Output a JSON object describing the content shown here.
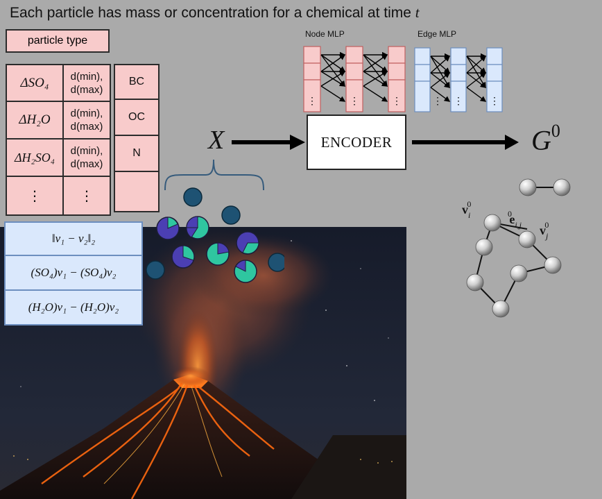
{
  "title": {
    "text": "Each particle has mass or concentration for a chemical at time ",
    "var": "t"
  },
  "particle_type": "particle type",
  "table": {
    "rows": [
      {
        "chem": "ΔSO₄",
        "range": [
          "d(min),",
          "d(max)"
        ]
      },
      {
        "chem": "ΔH₂O",
        "range": [
          "d(min),",
          "d(max)"
        ]
      },
      {
        "chem": "ΔH₂SO₄",
        "range": [
          "d(min),",
          "d(max)"
        ]
      },
      {
        "chem": "⋮",
        "range": [
          "⋮",
          ""
        ]
      }
    ],
    "types": [
      "BC",
      "OC",
      "N",
      ""
    ]
  },
  "edge_features": [
    "‖v₁ − v₂‖₂",
    "(SO₄)v₁ − (SO₄)v₂",
    "(H₂O)v₁ − (H₂O)v₂"
  ],
  "x_label": "X",
  "encoder": "ENCODER",
  "g_label": {
    "base": "G",
    "sup": "0"
  },
  "node_mlp": "Node MLP",
  "edge_mlp": "Edge MLP",
  "graph_labels": {
    "vi": "v",
    "vi_sub": "i",
    "vi_sup": "0",
    "eij": "e",
    "eij_sub": "i,j",
    "eij_sup": "0",
    "vj": "v",
    "vj_sub": "j",
    "vj_sup": "0"
  },
  "colors": {
    "background": "#aaaaaa",
    "pink": "#f8cbcb",
    "blue_fill": "#dae8fc",
    "blue_border": "#6c8ebf",
    "particle_dark": "#1e5273",
    "particle_purple": "#4b3fb3",
    "particle_teal": "#2fc6a0"
  }
}
